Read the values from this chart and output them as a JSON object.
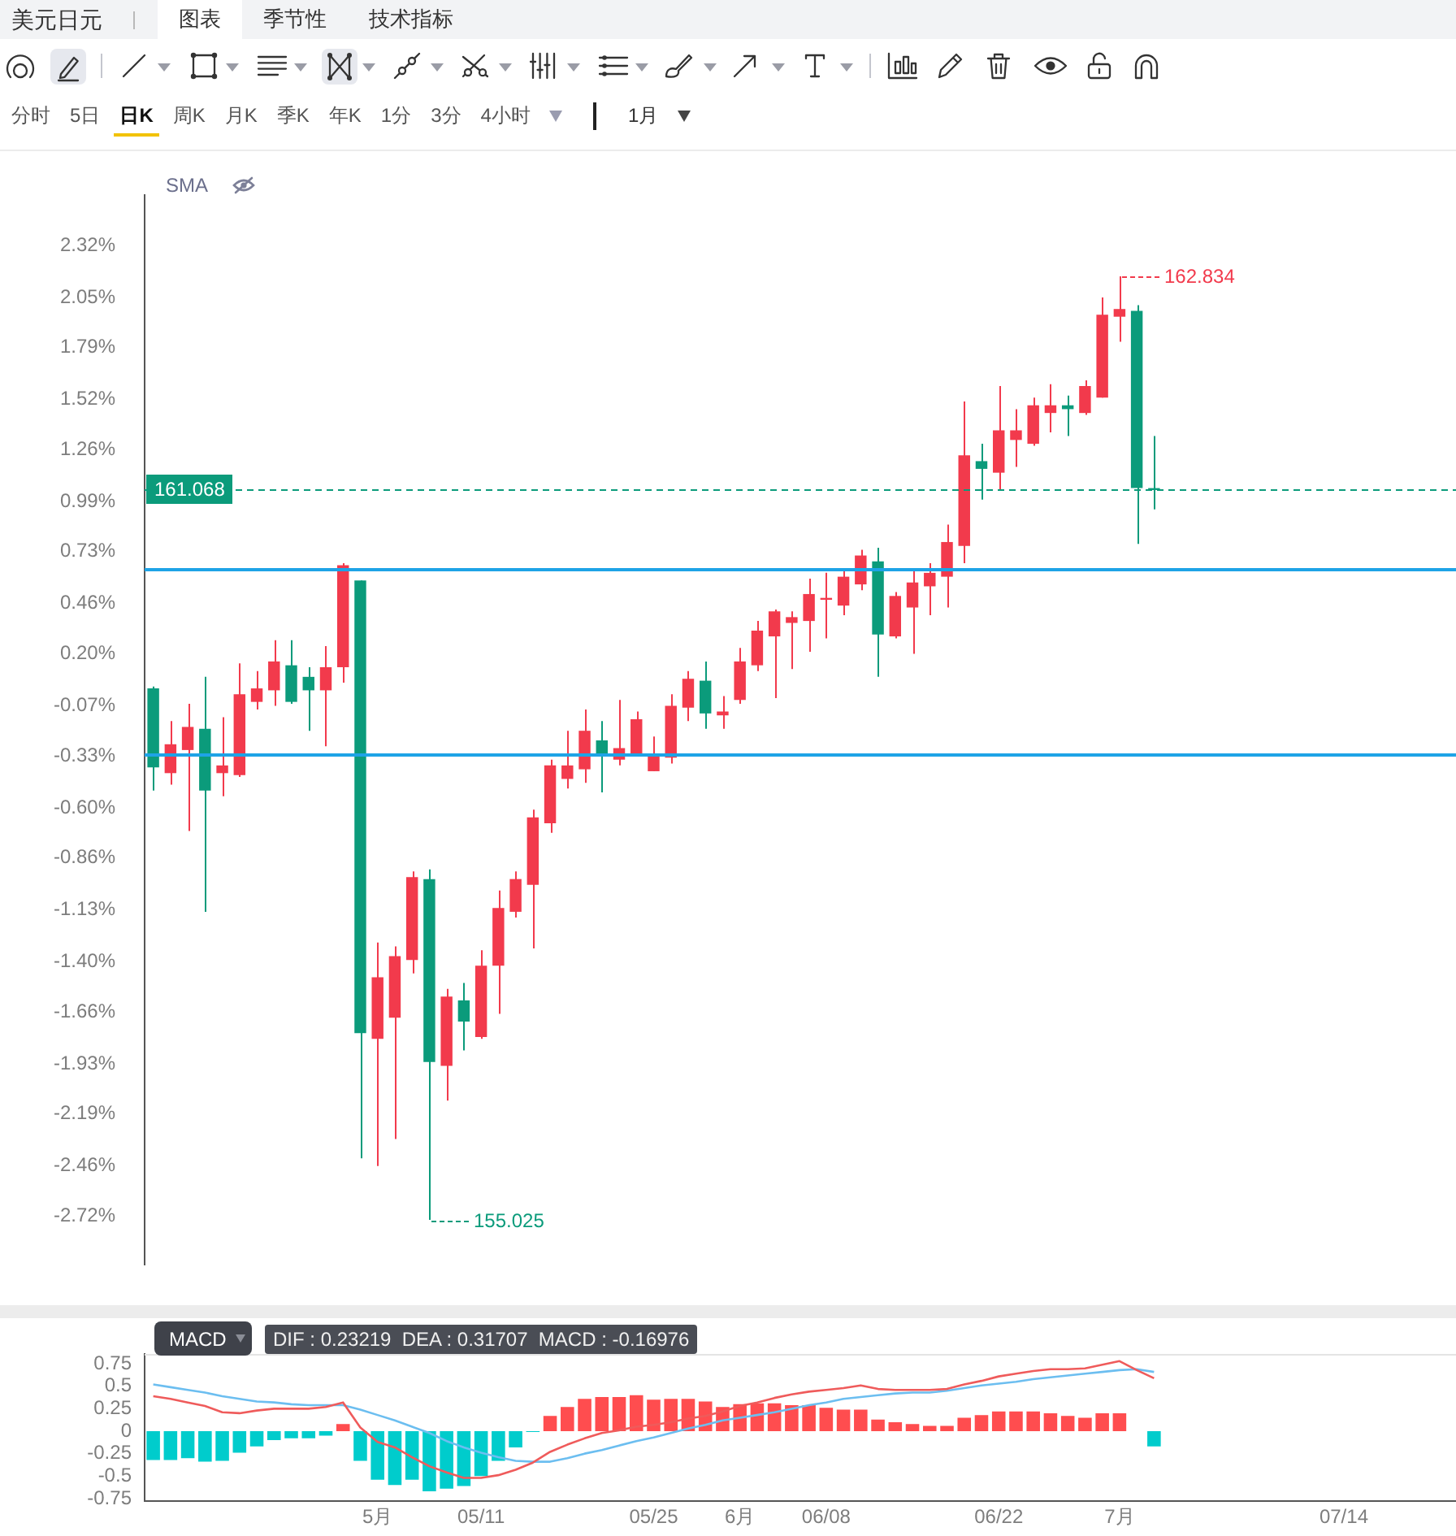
{
  "chart_data": [
    {
      "type": "other",
      "title": "美元日元",
      "annotations": [
        "图表",
        "季节性",
        "技术指标",
        "分时",
        "5日",
        "日K",
        "周K",
        "月K",
        "季K",
        "年K",
        "1分",
        "3分",
        "4小时",
        "1月"
      ]
    },
    {
      "type": "candlestick",
      "categories": [
        null,
        null,
        null,
        null,
        null,
        null,
        null,
        null,
        null,
        null,
        null,
        null,
        null,
        null,
        null,
        null,
        null,
        null,
        null,
        null,
        null,
        null,
        null,
        null,
        null,
        null,
        null,
        null,
        null,
        null,
        null,
        null,
        null,
        null,
        null,
        null,
        null,
        null,
        null,
        null,
        null,
        null,
        null,
        null,
        null,
        null,
        null,
        null,
        null,
        null,
        null,
        null,
        null,
        null,
        null,
        null,
        null,
        null,
        null,
        null,
        null,
        null,
        null,
        null,
        null,
        null,
        null,
        null,
        null,
        null,
        null,
        null,
        null,
        null,
        null,
        null
      ],
      "ohlc": [
        [
          0.02,
          0.03,
          -0.51,
          -0.39
        ],
        [
          -0.42,
          -0.15,
          -0.48,
          -0.27
        ],
        [
          -0.3,
          -0.06,
          -0.72,
          -0.18
        ],
        [
          -0.19,
          0.08,
          -1.14,
          -0.51
        ],
        [
          -0.42,
          -0.13,
          -0.54,
          -0.38
        ],
        [
          -0.43,
          0.15,
          -0.44,
          -0.01
        ],
        [
          -0.05,
          0.11,
          -0.09,
          0.02
        ],
        [
          0.01,
          0.27,
          -0.07,
          0.16
        ],
        [
          0.14,
          0.27,
          -0.06,
          -0.05
        ],
        [
          0.08,
          0.13,
          -0.2,
          0.01
        ],
        [
          0.01,
          0.24,
          -0.28,
          0.13
        ],
        [
          0.13,
          0.67,
          0.05,
          0.66
        ],
        [
          0.58,
          0.58,
          -2.42,
          -1.77
        ],
        [
          -1.8,
          -1.3,
          -2.46,
          -1.48
        ],
        [
          -1.69,
          -1.32,
          -2.32,
          -1.37
        ],
        [
          -1.39,
          -0.93,
          -1.46,
          -0.96
        ],
        [
          -0.97,
          -0.92,
          -2.74,
          -1.92
        ],
        [
          -1.94,
          -1.54,
          -2.12,
          -1.58
        ],
        [
          -1.6,
          -1.51,
          -1.86,
          -1.71
        ],
        [
          -1.79,
          -1.34,
          -1.8,
          -1.42
        ],
        [
          -1.42,
          -1.03,
          -1.67,
          -1.12
        ],
        [
          -1.14,
          -0.93,
          -1.17,
          -0.97
        ],
        [
          -1.0,
          -0.61,
          -1.33,
          -0.65
        ],
        [
          -0.68,
          -0.35,
          -0.73,
          -0.38
        ],
        [
          -0.45,
          -0.2,
          -0.5,
          -0.38
        ],
        [
          -0.4,
          -0.09,
          -0.47,
          -0.2
        ],
        [
          -0.25,
          -0.15,
          -0.52,
          -0.32
        ],
        [
          -0.35,
          -0.04,
          -0.38,
          -0.29
        ],
        [
          -0.32,
          -0.1,
          -0.33,
          -0.14
        ],
        [
          -0.41,
          -0.23,
          -0.41,
          -0.33
        ],
        [
          -0.34,
          -0.01,
          -0.37,
          -0.07
        ],
        [
          -0.08,
          0.11,
          -0.15,
          0.07
        ],
        [
          0.06,
          0.16,
          -0.19,
          -0.11
        ],
        [
          -0.12,
          -0.02,
          -0.19,
          -0.1
        ],
        [
          -0.04,
          0.23,
          -0.06,
          0.16
        ],
        [
          0.14,
          0.37,
          0.11,
          0.32
        ],
        [
          0.29,
          0.43,
          -0.03,
          0.42
        ],
        [
          0.36,
          0.42,
          0.12,
          0.39
        ],
        [
          0.37,
          0.59,
          0.21,
          0.51
        ],
        [
          0.48,
          0.62,
          0.28,
          0.49
        ],
        [
          0.45,
          0.64,
          0.4,
          0.6
        ],
        [
          0.56,
          0.74,
          0.53,
          0.71
        ],
        [
          0.68,
          0.75,
          0.08,
          0.3
        ],
        [
          0.29,
          0.52,
          0.28,
          0.5
        ],
        [
          0.44,
          0.63,
          0.2,
          0.57
        ],
        [
          0.55,
          0.67,
          0.4,
          0.62
        ],
        [
          0.6,
          0.87,
          0.44,
          0.78
        ],
        [
          0.76,
          1.51,
          0.67,
          1.23
        ],
        [
          1.2,
          1.29,
          1.0,
          1.16
        ],
        [
          1.14,
          1.59,
          1.05,
          1.36
        ],
        [
          1.31,
          1.47,
          1.17,
          1.36
        ],
        [
          1.29,
          1.53,
          1.28,
          1.49
        ],
        [
          1.45,
          1.6,
          1.35,
          1.49
        ],
        [
          1.49,
          1.54,
          1.33,
          1.47
        ],
        [
          1.45,
          1.62,
          1.44,
          1.59
        ],
        [
          1.53,
          2.05,
          1.53,
          1.96
        ],
        [
          1.95,
          2.16,
          1.82,
          1.99
        ],
        [
          1.98,
          2.01,
          0.77,
          1.06
        ],
        [
          1.06,
          1.33,
          0.95,
          1.05
        ],
        null,
        null,
        null,
        null,
        null,
        null,
        null,
        null,
        null,
        null,
        null,
        null,
        null,
        null,
        null,
        null,
        null
      ],
      "colors": [
        "#0b9b7b",
        "#f23a4c",
        "#f23a4c",
        "#0b9b7b",
        "#f23a4c",
        "#f23a4c",
        "#f23a4c",
        "#f23a4c",
        "#0b9b7b",
        "#0b9b7b",
        "#f23a4c",
        "#f23a4c",
        "#0b9b7b",
        "#f23a4c",
        "#f23a4c",
        "#f23a4c",
        "#0b9b7b",
        "#f23a4c",
        "#0b9b7b",
        "#f23a4c",
        "#f23a4c",
        "#f23a4c",
        "#f23a4c",
        "#f23a4c",
        "#f23a4c",
        "#f23a4c",
        "#0b9b7b",
        "#f23a4c",
        "#f23a4c",
        "#f23a4c",
        "#f23a4c",
        "#f23a4c",
        "#0b9b7b",
        "#f23a4c",
        "#f23a4c",
        "#f23a4c",
        "#f23a4c",
        "#f23a4c",
        "#f23a4c",
        "#f23a4c",
        "#f23a4c",
        "#f23a4c",
        "#0b9b7b",
        "#f23a4c",
        "#f23a4c",
        "#f23a4c",
        "#f23a4c",
        "#f23a4c",
        "#0b9b7b",
        "#f23a4c",
        "#f23a4c",
        "#f23a4c",
        "#f23a4c",
        "#0b9b7b",
        "#f23a4c",
        "#f23a4c",
        "#f23a4c",
        "#0b9b7b",
        "#0b9b7b",
        null,
        null,
        null,
        null,
        null,
        null,
        null,
        null,
        null,
        null,
        null,
        null,
        null,
        null,
        null,
        null,
        null
      ],
      "ylim": [
        -2.97,
        2.58
      ],
      "yticks": [
        {
          "value": 2.32,
          "label": "2.32%"
        },
        {
          "value": 2.05,
          "label": "2.05%"
        },
        {
          "value": 1.79,
          "label": "1.79%"
        },
        {
          "value": 1.52,
          "label": "1.52%"
        },
        {
          "value": 1.26,
          "label": "1.26%"
        },
        {
          "value": 0.99,
          "label": "0.99%"
        },
        {
          "value": 0.73,
          "label": "0.73%"
        },
        {
          "value": 0.46,
          "label": "0.46%"
        },
        {
          "value": 0.2,
          "label": "0.20%"
        },
        {
          "value": -0.07,
          "label": "-0.07%"
        },
        {
          "value": -0.33,
          "label": "-0.33%"
        },
        {
          "value": -0.6,
          "label": "-0.60%"
        },
        {
          "value": -0.86,
          "label": "-0.86%"
        },
        {
          "value": -1.13,
          "label": "-1.13%"
        },
        {
          "value": -1.4,
          "label": "-1.40%"
        },
        {
          "value": -1.66,
          "label": "-1.66%"
        },
        {
          "value": -1.93,
          "label": "-1.93%"
        },
        {
          "value": -2.19,
          "label": "-2.19%"
        },
        {
          "value": -2.46,
          "label": "-2.46%"
        },
        {
          "value": -2.72,
          "label": "-2.72%"
        }
      ],
      "tick_labels": "y",
      "ref_lines": [
        {
          "axis": "y",
          "value": 0.64,
          "color": "#1ea3e6"
        },
        {
          "axis": "y",
          "value": -0.32,
          "color": "#1ea3e6"
        },
        {
          "axis": "y",
          "value": 1.05,
          "color": "#0b9b7b",
          "line_style": "dashed"
        }
      ],
      "annotations": [
        "SMA",
        "162.834",
        "155.025",
        "161.068"
      ]
    },
    {
      "type": "bar",
      "title": "MACD",
      "categories": [
        null,
        null,
        null,
        null,
        null,
        null,
        null,
        null,
        null,
        null,
        null,
        null,
        null,
        "5月",
        null,
        null,
        null,
        null,
        null,
        "05/11",
        null,
        null,
        null,
        null,
        null,
        null,
        null,
        null,
        null,
        "05/25",
        null,
        null,
        null,
        null,
        "6月",
        null,
        null,
        null,
        null,
        "06/08",
        null,
        null,
        null,
        null,
        null,
        null,
        null,
        null,
        null,
        "06/22",
        null,
        null,
        null,
        null,
        null,
        null,
        "7月",
        null,
        null,
        null,
        null,
        null,
        null,
        null,
        null,
        null,
        null,
        null,
        null,
        "07/14",
        null,
        null,
        null,
        null,
        null,
        null
      ],
      "series": [
        {
          "type": "bar",
          "colors": [
            "#00cccc",
            "#00cccc",
            "#00cccc",
            "#00cccc",
            "#00cccc",
            "#00cccc",
            "#00cccc",
            "#00cccc",
            "#00cccc",
            "#00cccc",
            "#00cccc",
            "#ff4d4f",
            "#00cccc",
            "#00cccc",
            "#00cccc",
            "#00cccc",
            "#00cccc",
            "#00cccc",
            "#00cccc",
            "#00cccc",
            "#00cccc",
            "#00cccc",
            "#00cccc",
            "#ff4d4f",
            "#ff4d4f",
            "#ff4d4f",
            "#ff4d4f",
            "#ff4d4f",
            "#ff4d4f",
            "#ff4d4f",
            "#ff4d4f",
            "#ff4d4f",
            "#ff4d4f",
            "#ff4d4f",
            "#ff4d4f",
            "#ff4d4f",
            "#ff4d4f",
            "#ff4d4f",
            "#ff4d4f",
            "#ff4d4f",
            "#ff4d4f",
            "#ff4d4f",
            "#ff4d4f",
            "#ff4d4f",
            "#ff4d4f",
            "#ff4d4f",
            "#ff4d4f",
            "#ff4d4f",
            "#ff4d4f",
            "#ff4d4f",
            "#ff4d4f",
            "#ff4d4f",
            "#ff4d4f",
            "#ff4d4f",
            "#ff4d4f",
            "#ff4d4f",
            "#ff4d4f",
            "#ff4d4f",
            "#00cccc",
            null,
            null,
            null,
            null,
            null,
            null,
            null,
            null,
            null,
            null,
            null,
            null,
            null,
            null,
            null,
            null,
            null
          ],
          "values": [
            -0.32,
            -0.32,
            -0.3,
            -0.34,
            -0.33,
            -0.24,
            -0.17,
            -0.1,
            -0.08,
            -0.08,
            -0.05,
            0.08,
            -0.33,
            -0.54,
            -0.6,
            -0.54,
            -0.67,
            -0.64,
            -0.61,
            -0.5,
            -0.33,
            -0.18,
            -0.01,
            0.17,
            0.27,
            0.36,
            0.38,
            0.38,
            0.4,
            0.35,
            0.36,
            0.36,
            0.33,
            0.27,
            0.3,
            0.31,
            0.31,
            0.29,
            0.29,
            0.26,
            0.24,
            0.24,
            0.13,
            0.1,
            0.08,
            0.06,
            0.06,
            0.15,
            0.18,
            0.22,
            0.22,
            0.22,
            0.2,
            0.17,
            0.15,
            0.2,
            0.2,
            0,
            -0.17,
            null,
            null,
            null,
            null,
            null,
            null,
            null,
            null,
            null,
            null,
            null,
            null,
            null,
            null,
            null,
            null,
            null
          ]
        },
        {
          "type": "line",
          "color": "#ef5b5b",
          "values": [
            0.39,
            0.36,
            0.32,
            0.28,
            0.21,
            0.2,
            0.23,
            0.25,
            0.25,
            0.25,
            0.27,
            0.32,
            0.04,
            -0.12,
            -0.18,
            -0.29,
            -0.39,
            -0.46,
            -0.52,
            -0.52,
            -0.49,
            -0.43,
            -0.35,
            -0.23,
            -0.15,
            -0.08,
            -0.02,
            0.01,
            0.05,
            0.07,
            0.1,
            0.14,
            0.17,
            0.22,
            0.28,
            0.32,
            0.37,
            0.41,
            0.44,
            0.46,
            0.48,
            0.51,
            0.47,
            0.46,
            0.46,
            0.46,
            0.47,
            0.52,
            0.56,
            0.61,
            0.64,
            0.67,
            0.69,
            0.69,
            0.7,
            0.74,
            0.78,
            0.68,
            0.59,
            null,
            null,
            null,
            null,
            null,
            null,
            null,
            null,
            null,
            null,
            null,
            null,
            null,
            null,
            null,
            null,
            null
          ]
        },
        {
          "type": "line",
          "color": "#6cbef0",
          "values": [
            0.52,
            0.49,
            0.46,
            0.43,
            0.39,
            0.36,
            0.33,
            0.32,
            0.3,
            0.29,
            0.29,
            0.29,
            0.24,
            0.18,
            0.12,
            0.05,
            -0.02,
            -0.11,
            -0.18,
            -0.24,
            -0.29,
            -0.33,
            -0.34,
            -0.34,
            -0.3,
            -0.25,
            -0.21,
            -0.16,
            -0.11,
            -0.07,
            -0.02,
            0.03,
            0.07,
            0.12,
            0.15,
            0.18,
            0.21,
            0.25,
            0.29,
            0.32,
            0.36,
            0.38,
            0.4,
            0.42,
            0.43,
            0.43,
            0.45,
            0.48,
            0.51,
            0.53,
            0.55,
            0.58,
            0.6,
            0.62,
            0.64,
            0.66,
            0.68,
            0.69,
            0.66,
            null,
            null,
            null,
            null,
            null,
            null,
            null,
            null,
            null,
            null,
            null,
            null,
            null,
            null,
            null,
            null,
            null
          ]
        }
      ],
      "ylim": [
        -0.78,
        0.86
      ],
      "yticks": [
        0.75,
        0.5,
        0.25,
        0,
        -0.25,
        -0.5,
        -0.75
      ],
      "annotations": [
        "DIF : 0.23219  DEA : 0.31707  MACD : -0.16976"
      ]
    }
  ]
}
